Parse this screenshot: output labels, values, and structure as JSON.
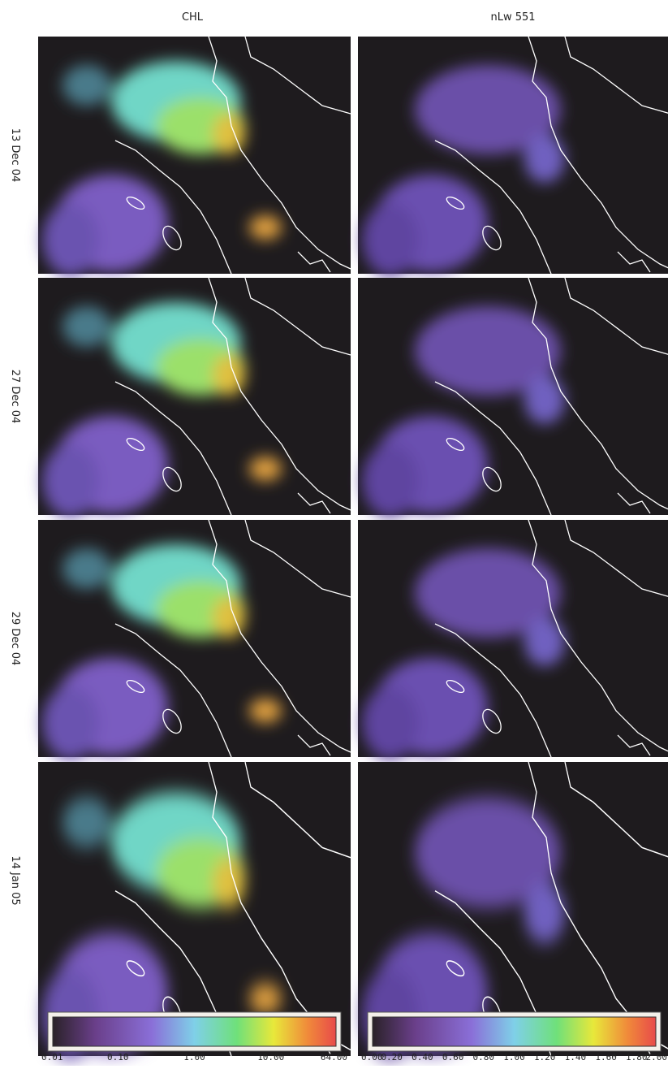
{
  "columns": [
    "CHL",
    "nLw 551"
  ],
  "rows": [
    "13 Dec 04",
    "27 Dec 04",
    "29 Dec 04",
    "14 Jan 05"
  ],
  "colorbars": [
    {
      "labels": [
        "0.01",
        "0.10",
        "1.00",
        "10.00",
        "64.00"
      ]
    },
    {
      "labels": [
        "0.00",
        "0.20",
        "0.40",
        "0.60",
        "0.80",
        "1.00",
        "1.20",
        "1.40",
        "1.60",
        "1.80",
        "2.00"
      ]
    }
  ]
}
